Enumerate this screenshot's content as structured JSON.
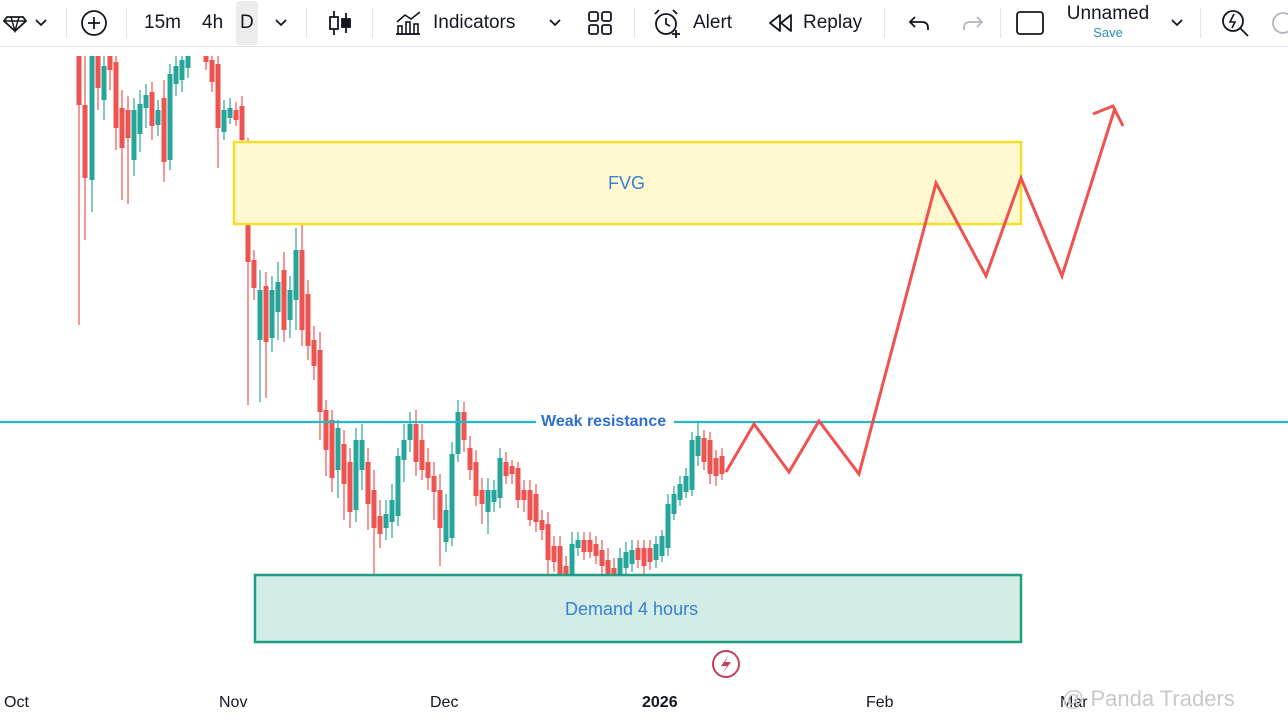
{
  "toolbar": {
    "intervals": [
      "15m",
      "4h",
      "D"
    ],
    "active_interval": "D",
    "indicators_label": "Indicators",
    "alert_label": "Alert",
    "replay_label": "Replay",
    "layout_name": "Unnamed",
    "save_label": "Save"
  },
  "chart": {
    "x_axis_labels": [
      "Oct",
      "Nov",
      "Dec",
      "2026",
      "Feb",
      "Mar"
    ],
    "annotations": {
      "fvg_label": "FVG",
      "resistance_label": "Weak resistance",
      "demand_label": "Demand 4 hours"
    },
    "colors": {
      "up_candle": "#26a69a",
      "down_candle": "#ef5350",
      "resistance_line": "#22b8c4",
      "fvg_fill": "#fff8d0",
      "fvg_border": "#f5df28",
      "demand_fill": "#d2ede5",
      "demand_border": "#1e9c84",
      "projection": "#ef5350"
    }
  },
  "watermark": "@ Panda Traders"
}
